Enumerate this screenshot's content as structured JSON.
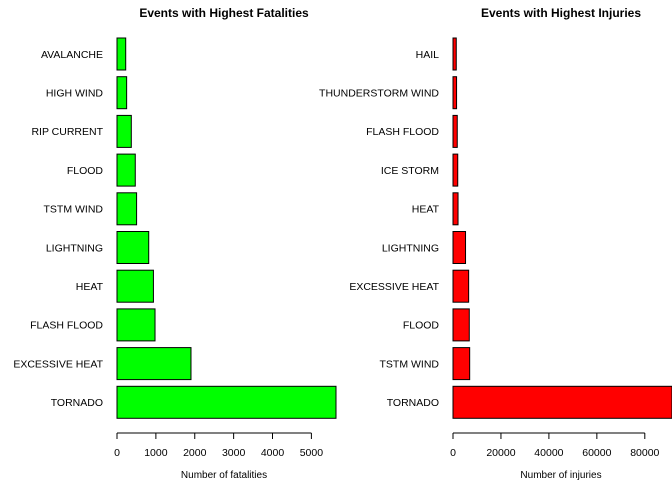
{
  "chart_data": [
    {
      "type": "bar",
      "orientation": "horizontal",
      "title": "Events with Highest Fatalities",
      "xlabel": "Number of fatalities",
      "ylabel": "",
      "categories": [
        "TORNADO",
        "EXCESSIVE HEAT",
        "FLASH FLOOD",
        "HEAT",
        "LIGHTNING",
        "TSTM WIND",
        "FLOOD",
        "RIP CURRENT",
        "HIGH WIND",
        "AVALANCHE"
      ],
      "values": [
        5633,
        1903,
        978,
        937,
        816,
        504,
        470,
        368,
        248,
        224
      ],
      "xlim": [
        0,
        5633
      ],
      "xticks": [
        0,
        1000,
        2000,
        3000,
        4000,
        5000
      ],
      "color": "#00ff00",
      "grid": false
    },
    {
      "type": "bar",
      "orientation": "horizontal",
      "title": "Events with Highest Injuries",
      "xlabel": "Number of injuries",
      "ylabel": "",
      "categories": [
        "TORNADO",
        "TSTM WIND",
        "FLOOD",
        "EXCESSIVE HEAT",
        "LIGHTNING",
        "HEAT",
        "ICE STORM",
        "FLASH FLOOD",
        "THUNDERSTORM WIND",
        "HAIL"
      ],
      "values": [
        91346,
        6957,
        6789,
        6525,
        5230,
        2100,
        1975,
        1777,
        1488,
        1361
      ],
      "xlim": [
        0,
        91346
      ],
      "xticks": [
        0,
        20000,
        40000,
        60000,
        80000
      ],
      "color": "#ff0000",
      "grid": false
    }
  ]
}
